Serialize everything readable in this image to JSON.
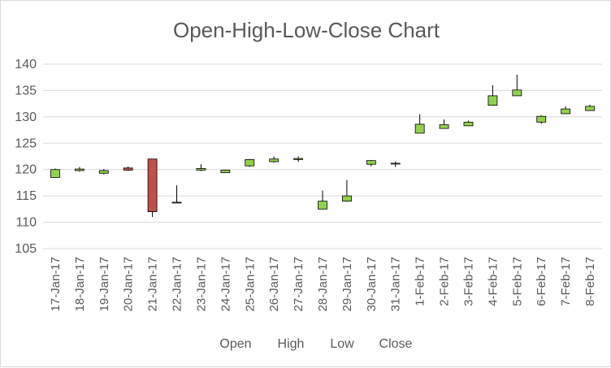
{
  "chart_data": {
    "type": "candlestick",
    "title": "Open-High-Low-Close Chart",
    "xlabel": "",
    "ylabel": "",
    "ylim": [
      105,
      140
    ],
    "yticks": [
      105,
      110,
      115,
      120,
      125,
      130,
      135,
      140
    ],
    "grid": true,
    "legend_position": "bottom",
    "legend": [
      "Open",
      "High",
      "Low",
      "Close"
    ],
    "colors": {
      "up": "#92d050",
      "down": "#c0504d",
      "line": "#000000",
      "grid": "#d9d9d9",
      "text": "#595959"
    },
    "categories": [
      "17-Jan-17",
      "18-Jan-17",
      "19-Jan-17",
      "20-Jan-17",
      "21-Jan-17",
      "22-Jan-17",
      "23-Jan-17",
      "24-Jan-17",
      "25-Jan-17",
      "26-Jan-17",
      "27-Jan-17",
      "28-Jan-17",
      "29-Jan-17",
      "30-Jan-17",
      "31-Jan-17",
      "1-Feb-17",
      "2-Feb-17",
      "3-Feb-17",
      "4-Feb-17",
      "5-Feb-17",
      "6-Feb-17",
      "7-Feb-17",
      "8-Feb-17"
    ],
    "open": [
      118.5,
      119.8,
      119.3,
      120.3,
      122.0,
      113.8,
      119.9,
      119.4,
      120.7,
      121.5,
      121.9,
      112.5,
      114.0,
      121.0,
      121.2,
      126.9,
      127.8,
      128.3,
      132.2,
      134.0,
      129.0,
      130.6,
      131.2
    ],
    "high": [
      120.2,
      120.5,
      120.1,
      120.6,
      122.0,
      117.0,
      121.0,
      120.0,
      122.0,
      122.5,
      122.5,
      116.0,
      118.0,
      121.8,
      121.5,
      130.5,
      129.5,
      129.3,
      136.0,
      138.0,
      130.3,
      132.0,
      132.3
    ],
    "low": [
      118.5,
      119.6,
      119.1,
      119.7,
      111.0,
      113.8,
      119.7,
      119.4,
      120.5,
      121.3,
      121.5,
      112.5,
      113.9,
      120.6,
      120.5,
      126.9,
      127.8,
      128.3,
      132.2,
      134.0,
      128.7,
      130.6,
      131.2
    ],
    "close": [
      120.0,
      120.1,
      119.8,
      119.9,
      112.0,
      113.8,
      120.2,
      119.9,
      121.9,
      122.0,
      122.1,
      114.0,
      115.0,
      121.7,
      121.2,
      128.6,
      128.5,
      129.0,
      134.0,
      135.1,
      130.1,
      131.5,
      132.0
    ]
  }
}
